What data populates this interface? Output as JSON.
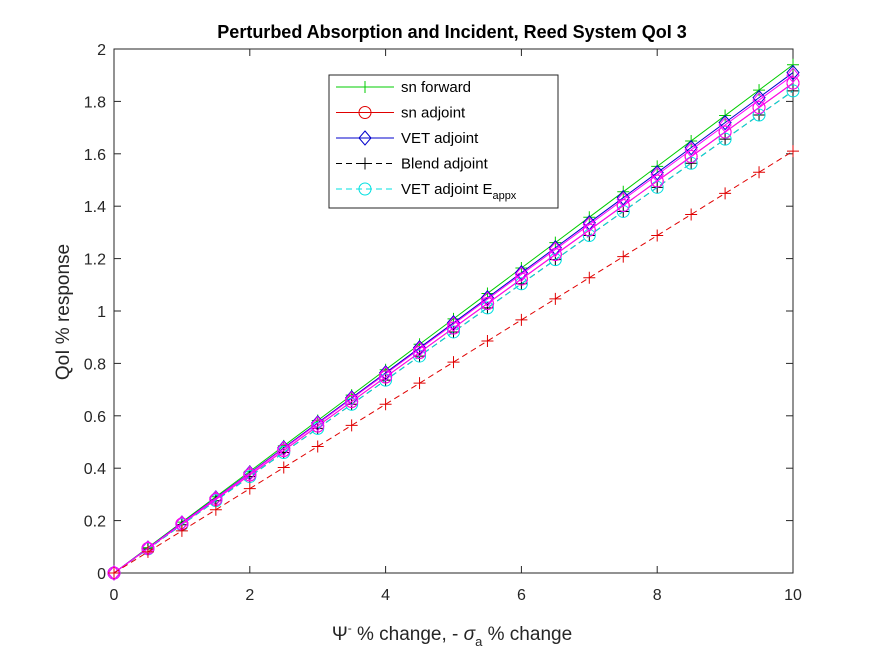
{
  "chart_data": {
    "type": "line",
    "title": "Perturbed Absorption and Incident, Reed System QoI 3",
    "xlabel": {
      "pre": "Ψ",
      "sup": "-",
      "mid": " % change, - ",
      "greek": "σ",
      "sub": "a",
      "post": " % change"
    },
    "ylabel": "QoI % response",
    "xlim": [
      0,
      10
    ],
    "ylim": [
      0,
      2
    ],
    "xticks": [
      0,
      2,
      4,
      6,
      8,
      10
    ],
    "yticks": [
      0,
      0.2,
      0.4,
      0.6,
      0.8,
      1,
      1.2,
      1.4,
      1.6,
      1.8,
      2
    ],
    "ytick_labels": [
      "0",
      "0.2",
      "0.4",
      "0.6",
      "0.8",
      "1",
      "1.2",
      "1.4",
      "1.6",
      "1.8",
      "2"
    ],
    "xtick_labels": [
      "0",
      "2",
      "4",
      "6",
      "8",
      "10"
    ],
    "grid": false,
    "legend_position": "top-center",
    "x": [
      0,
      0.5,
      1,
      1.5,
      2,
      2.5,
      3,
      3.5,
      4,
      4.5,
      5,
      5.5,
      6,
      6.5,
      7,
      7.5,
      8,
      8.5,
      9,
      9.5,
      10
    ],
    "series": [
      {
        "name": "sn forward",
        "color": "#00cc00",
        "dash": "solid",
        "marker": "plus",
        "values": [
          0,
          0.097,
          0.194,
          0.291,
          0.388,
          0.485,
          0.582,
          0.679,
          0.776,
          0.873,
          0.97,
          1.067,
          1.164,
          1.261,
          1.358,
          1.455,
          1.552,
          1.649,
          1.746,
          1.843,
          1.94
        ]
      },
      {
        "name": "sn adjoint",
        "color": "#e00000",
        "dash": "solid",
        "marker": "circle",
        "values": [
          0,
          0.0935,
          0.187,
          0.2805,
          0.374,
          0.4675,
          0.561,
          0.6545,
          0.748,
          0.8415,
          0.935,
          1.0285,
          1.122,
          1.2155,
          1.309,
          1.4025,
          1.496,
          1.5895,
          1.683,
          1.7765,
          1.87
        ]
      },
      {
        "name": "VET adjoint",
        "color": "#0000cc",
        "dash": "solid",
        "marker": "diamond",
        "values": [
          0,
          0.0955,
          0.191,
          0.2865,
          0.382,
          0.4775,
          0.573,
          0.6685,
          0.764,
          0.8595,
          0.955,
          1.0505,
          1.146,
          1.2415,
          1.337,
          1.4325,
          1.528,
          1.6235,
          1.719,
          1.8145,
          1.91
        ]
      },
      {
        "name": "Blend adjoint",
        "color": "#000000",
        "dash": "dashed",
        "marker": "plus",
        "values": [
          0,
          0.092,
          0.184,
          0.276,
          0.368,
          0.46,
          0.552,
          0.644,
          0.736,
          0.828,
          0.92,
          1.012,
          1.104,
          1.196,
          1.288,
          1.38,
          1.472,
          1.564,
          1.656,
          1.748,
          1.84
        ]
      },
      {
        "name": "VET adjoint E",
        "name_sub": "appx",
        "color": "#00e0e0",
        "dash": "dashed",
        "marker": "circle",
        "values": [
          0,
          0.092,
          0.184,
          0.276,
          0.368,
          0.46,
          0.552,
          0.644,
          0.736,
          0.828,
          0.92,
          1.012,
          1.104,
          1.196,
          1.288,
          1.38,
          1.472,
          1.564,
          1.656,
          1.748,
          1.84
        ]
      },
      {
        "color": "#ff00ff",
        "dash": "solid",
        "marker": "diamond",
        "values": [
          0,
          0.095,
          0.19,
          0.285,
          0.38,
          0.475,
          0.57,
          0.665,
          0.76,
          0.855,
          0.95,
          1.045,
          1.14,
          1.235,
          1.33,
          1.425,
          1.52,
          1.615,
          1.71,
          1.805,
          1.9
        ]
      },
      {
        "color": "#ff00ff",
        "dash": "solid",
        "marker": "circle",
        "values": [
          0,
          0.0935,
          0.187,
          0.2805,
          0.374,
          0.4675,
          0.561,
          0.6545,
          0.748,
          0.8415,
          0.935,
          1.0285,
          1.122,
          1.2155,
          1.309,
          1.4025,
          1.496,
          1.5895,
          1.683,
          1.7765,
          1.87
        ]
      },
      {
        "color": "#e00000",
        "dash": "dashed",
        "marker": "plus",
        "values": [
          0,
          0.0805,
          0.161,
          0.2415,
          0.322,
          0.4025,
          0.483,
          0.5635,
          0.644,
          0.7245,
          0.805,
          0.8855,
          0.966,
          1.0465,
          1.127,
          1.2075,
          1.288,
          1.3685,
          1.449,
          1.5295,
          1.61
        ]
      }
    ]
  }
}
